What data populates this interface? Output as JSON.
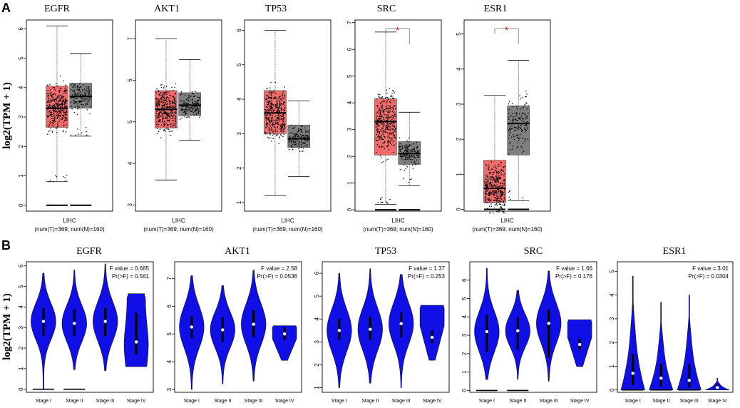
{
  "figure": {
    "panel_a_letter": "A",
    "panel_b_letter": "B",
    "y_label": "log2(TPM + 1)",
    "colors": {
      "tumor": "#f26b6b",
      "normal": "#7f7f7f",
      "violin": "#1010e6",
      "star": "#ff0000"
    }
  },
  "chart_data": [
    {
      "type": "box",
      "gene": "EGFR",
      "xlabel": "LIHC",
      "n_label": "(num(T)=369; num(N)=160)",
      "ylim": [
        -0.2,
        6.3
      ],
      "yticks": [
        0,
        1,
        2,
        3,
        4,
        5,
        6
      ],
      "significant": false,
      "tumor": {
        "min": 0.8,
        "q1": 2.65,
        "median": 3.3,
        "q3": 4.05,
        "max": 6.1,
        "zero_line": true
      },
      "normal": {
        "min": 2.35,
        "q1": 3.3,
        "median": 3.7,
        "q3": 4.15,
        "max": 5.15,
        "zero_line": true
      }
    },
    {
      "type": "box",
      "gene": "AKT1",
      "xlabel": "LIHC",
      "n_label": "(num(T)=369; num(N)=160)",
      "ylim": [
        2.85,
        7.45
      ],
      "yticks": [
        3,
        4,
        5,
        6,
        7
      ],
      "significant": false,
      "tumor": {
        "min": 3.6,
        "q1": 4.85,
        "median": 5.3,
        "q3": 5.75,
        "max": 7.0,
        "zero_line": false
      },
      "normal": {
        "min": 4.55,
        "q1": 5.15,
        "median": 5.4,
        "q3": 5.7,
        "max": 6.5,
        "zero_line": false
      }
    },
    {
      "type": "box",
      "gene": "TP53",
      "xlabel": "LIHC",
      "n_label": "(num(T)=369; num(N)=160)",
      "ylim": [
        0.75,
        6.3
      ],
      "yticks": [
        1,
        2,
        3,
        4,
        5,
        6
      ],
      "significant": false,
      "tumor": {
        "min": 1.2,
        "q1": 3.0,
        "median": 3.6,
        "q3": 4.25,
        "max": 6.0,
        "zero_line": false
      },
      "normal": {
        "min": 1.75,
        "q1": 2.6,
        "median": 2.85,
        "q3": 3.25,
        "max": 3.95,
        "zero_line": false
      }
    },
    {
      "type": "box",
      "gene": "SRC",
      "xlabel": "LIHC",
      "n_label": "(num(T)=369; num(N)=160)",
      "ylim": [
        -0.05,
        7.1
      ],
      "yticks": [
        0,
        1,
        2,
        3,
        4,
        5,
        6,
        7
      ],
      "significant": true,
      "star": "*",
      "tumor": {
        "min": 0.2,
        "q1": 2.05,
        "median": 3.3,
        "q3": 4.15,
        "max": 6.65,
        "zero_line": true
      },
      "normal": {
        "min": 0.9,
        "q1": 1.7,
        "median": 2.1,
        "q3": 2.55,
        "max": 3.65,
        "zero_line": true
      }
    },
    {
      "type": "box",
      "gene": "ESR1",
      "xlabel": "LIHC",
      "n_label": "(num(T)=369; num(N)=160)",
      "ylim": [
        -0.05,
        5.4
      ],
      "yticks": [
        0,
        1,
        2,
        3,
        4,
        5
      ],
      "significant": true,
      "star": "*",
      "tumor": {
        "min": 0.0,
        "q1": 0.2,
        "median": 0.6,
        "q3": 1.4,
        "max": 3.25,
        "zero_line": true
      },
      "normal": {
        "min": 0.25,
        "q1": 1.55,
        "median": 2.45,
        "q3": 2.95,
        "max": 4.25,
        "zero_line": true
      }
    },
    {
      "type": "violin",
      "gene": "EGFR",
      "f_value": "F value = 0.685",
      "pr_value": "Pr(>F) = 0.561",
      "ylim": [
        -0.15,
        6.2
      ],
      "yticks": [
        0,
        1,
        2,
        3,
        4,
        5,
        6
      ],
      "categories": [
        "Stage I",
        "Stage II",
        "Stage III",
        "Stage IV"
      ],
      "stages": [
        {
          "min": 0.0,
          "max": 5.65,
          "q1": 2.6,
          "median": 3.3,
          "q3": 3.95,
          "shape": "long",
          "zero_line": true
        },
        {
          "min": 0.95,
          "max": 5.8,
          "q1": 2.6,
          "median": 3.2,
          "q3": 3.9,
          "shape": "mid",
          "zero_line": true
        },
        {
          "min": 0.9,
          "max": 6.1,
          "q1": 2.6,
          "median": 3.3,
          "q3": 3.95,
          "shape": "mid",
          "zero_line": false
        },
        {
          "min": 1.1,
          "max": 4.65,
          "q1": 1.7,
          "median": 2.3,
          "q3": 3.7,
          "shape": "flat",
          "zero_line": false
        }
      ]
    },
    {
      "type": "violin",
      "gene": "AKT1",
      "f_value": "F value = 2.58",
      "pr_value": "Pr(>F) = 0.0536",
      "ylim": [
        2.9,
        7.6
      ],
      "yticks": [
        3,
        4,
        5,
        6,
        7
      ],
      "categories": [
        "Stage I",
        "Stage II",
        "Stage III",
        "Stage IV"
      ],
      "stages": [
        {
          "min": 3.0,
          "max": 7.1,
          "q1": 4.85,
          "median": 5.25,
          "q3": 5.65,
          "shape": "mid",
          "zero_line": false
        },
        {
          "min": 3.2,
          "max": 6.75,
          "q1": 4.7,
          "median": 5.15,
          "q3": 5.6,
          "shape": "mid",
          "zero_line": false
        },
        {
          "min": 3.3,
          "max": 7.3,
          "q1": 4.9,
          "median": 5.35,
          "q3": 5.85,
          "shape": "mid",
          "zero_line": false
        },
        {
          "min": 4.05,
          "max": 5.3,
          "q1": 4.8,
          "median": 5.0,
          "q3": 5.25,
          "shape": "top",
          "zero_line": false
        }
      ]
    },
    {
      "type": "violin",
      "gene": "TP53",
      "f_value": "F value = 1.37",
      "pr_value": "Pr(>F) = 0.253",
      "ylim": [
        0.8,
        6.5
      ],
      "yticks": [
        1,
        2,
        3,
        4,
        5,
        6
      ],
      "categories": [
        "Stage I",
        "Stage II",
        "Stage III",
        "Stage IV"
      ],
      "stages": [
        {
          "min": 1.0,
          "max": 6.0,
          "q1": 3.1,
          "median": 3.5,
          "q3": 4.0,
          "shape": "mid",
          "zero_line": false
        },
        {
          "min": 1.2,
          "max": 6.2,
          "q1": 3.1,
          "median": 3.55,
          "q3": 4.1,
          "shape": "mid",
          "zero_line": false
        },
        {
          "min": 1.0,
          "max": 5.95,
          "q1": 3.2,
          "median": 3.8,
          "q3": 4.3,
          "shape": "mid",
          "zero_line": false
        },
        {
          "min": 2.2,
          "max": 4.6,
          "q1": 2.95,
          "median": 3.2,
          "q3": 3.5,
          "shape": "top",
          "zero_line": false
        }
      ]
    },
    {
      "type": "violin",
      "gene": "SRC",
      "f_value": "F value = 1.66",
      "pr_value": "Pr(>F) = 0.176",
      "ylim": [
        -0.1,
        7.0
      ],
      "yticks": [
        0,
        1,
        2,
        3,
        4,
        5,
        6
      ],
      "categories": [
        "Stage I",
        "Stage II",
        "Stage III",
        "Stage IV"
      ],
      "stages": [
        {
          "min": 0.6,
          "max": 6.65,
          "q1": 2.1,
          "median": 3.2,
          "q3": 4.1,
          "shape": "mid",
          "zero_line": true
        },
        {
          "min": 0.6,
          "max": 5.45,
          "q1": 2.2,
          "median": 3.25,
          "q3": 4.0,
          "shape": "mid",
          "zero_line": true
        },
        {
          "min": 0.5,
          "max": 6.5,
          "q1": 1.8,
          "median": 3.65,
          "q3": 4.4,
          "shape": "mid",
          "zero_line": false
        },
        {
          "min": 1.3,
          "max": 3.85,
          "q1": 2.2,
          "median": 2.5,
          "q3": 2.8,
          "shape": "top",
          "zero_line": false
        }
      ]
    },
    {
      "type": "violin",
      "gene": "ESR1",
      "f_value": "F value = 3.01",
      "pr_value": "Pr(>F) = 0.0304",
      "ylim": [
        -0.1,
        5.4
      ],
      "yticks": [
        0,
        1,
        2,
        3,
        4,
        5
      ],
      "categories": [
        "Stage I",
        "Stage II",
        "Stage III",
        "Stage IV"
      ],
      "stages": [
        {
          "min": 0.0,
          "max": 4.8,
          "q1": 0.2,
          "median": 0.7,
          "q3": 1.5,
          "shape": "bottom",
          "zero_line": true
        },
        {
          "min": 0.0,
          "max": 3.7,
          "q1": 0.15,
          "median": 0.5,
          "q3": 1.1,
          "shape": "bottom",
          "zero_line": true
        },
        {
          "min": 0.0,
          "max": 4.0,
          "q1": 0.1,
          "median": 0.4,
          "q3": 1.1,
          "shape": "bottom",
          "zero_line": true
        },
        {
          "min": 0.0,
          "max": 0.5,
          "q1": 0.0,
          "median": 0.1,
          "q3": 0.25,
          "shape": "bottom",
          "zero_line": false
        }
      ]
    }
  ]
}
